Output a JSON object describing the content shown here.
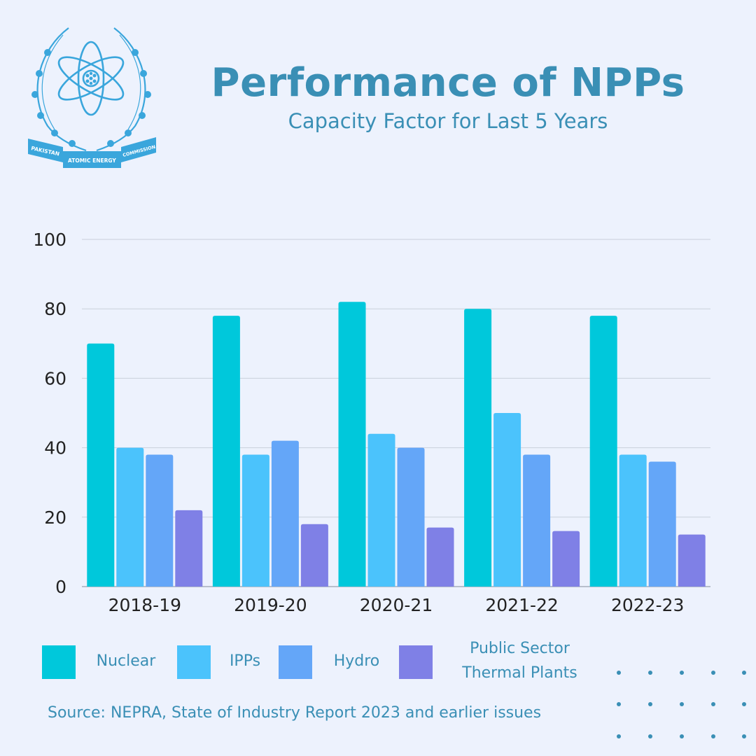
{
  "header": {
    "title": "Performance of NPPs",
    "subtitle": "Capacity Factor for Last 5 Years"
  },
  "logo": {
    "ribbon_left": "PAKISTAN",
    "ribbon_center": "ATOMIC ENERGY",
    "ribbon_right": "COMMISSION",
    "color": "#3aa6dc"
  },
  "chart_data": {
    "type": "bar",
    "title": "Performance of NPPs",
    "subtitle": "Capacity Factor for Last 5 Years",
    "xlabel": "",
    "ylabel": "",
    "categories": [
      "2018-19",
      "2019-20",
      "2020-21",
      "2021-22",
      "2022-23"
    ],
    "series": [
      {
        "name": "Nuclear",
        "color": "#00c8db",
        "values": [
          70,
          78,
          82,
          80,
          78
        ]
      },
      {
        "name": "IPPs",
        "color": "#4bc3fc",
        "values": [
          40,
          38,
          44,
          50,
          38
        ]
      },
      {
        "name": "Hydro",
        "color": "#64a6f8",
        "values": [
          38,
          42,
          40,
          38,
          36
        ]
      },
      {
        "name": "Public Sector Thermal Plants",
        "color": "#7f80e6",
        "values": [
          22,
          18,
          17,
          16,
          15
        ]
      }
    ],
    "ylim": [
      0,
      100
    ],
    "yticks": [
      0,
      20,
      40,
      60,
      80,
      100
    ],
    "grid": true,
    "legend_position": "bottom"
  },
  "legend": [
    {
      "label_lines": [
        "Nuclear"
      ]
    },
    {
      "label_lines": [
        "IPPs"
      ]
    },
    {
      "label_lines": [
        "Hydro"
      ]
    },
    {
      "label_lines": [
        "Public Sector",
        "Thermal Plants"
      ]
    }
  ],
  "footer": {
    "source": "Source: NEPRA, State of Industry Report 2023 and earlier issues"
  },
  "theme": {
    "background": "#edf2fd",
    "text_accent": "#3a8fb5",
    "axis_text": "#222222",
    "grid": "#c9cfdc"
  }
}
